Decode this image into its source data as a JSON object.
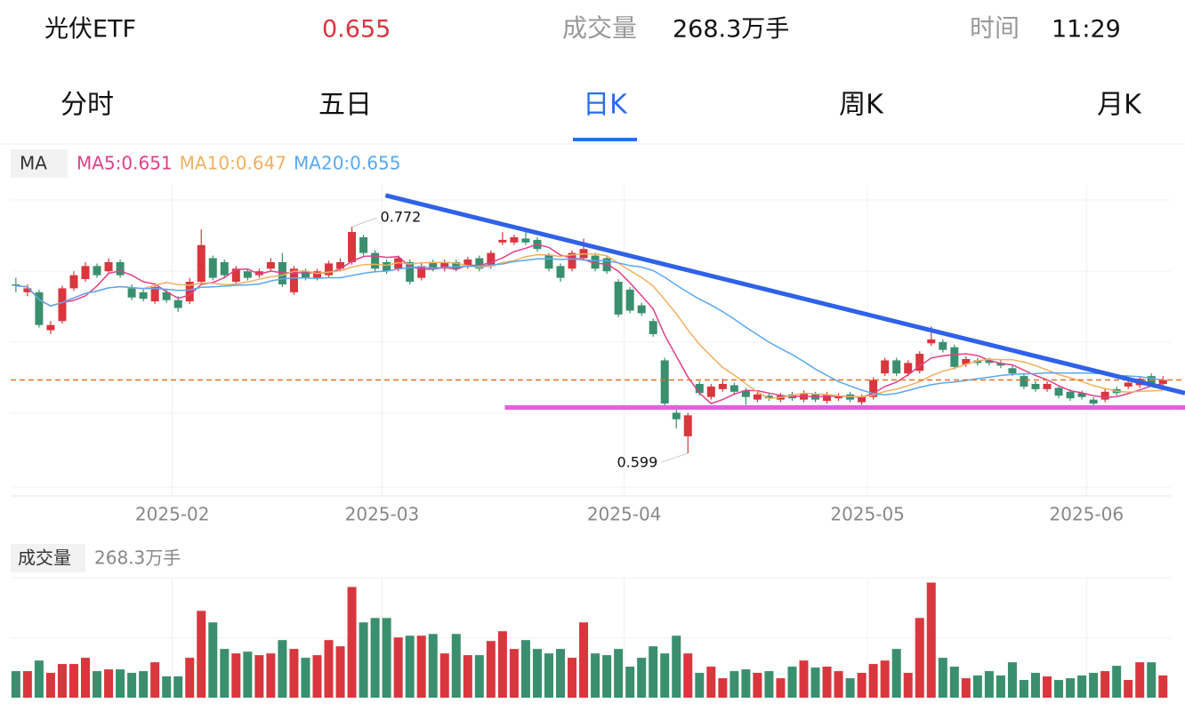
{
  "header": {
    "name": "光伏ETF",
    "price": "0.655",
    "volume_label": "成交量",
    "volume": "268.3万手",
    "time_label": "时间",
    "time": "11:29"
  },
  "tabs": [
    "分时",
    "五日",
    "日K",
    "周K",
    "月K"
  ],
  "active_tab": 2,
  "chart_data": {
    "type": "candlestick",
    "ma_label": "MA",
    "ma_legend": [
      {
        "label": "MA5:0.651",
        "color": "#e0408a",
        "period": 5
      },
      {
        "label": "MA10:0.647",
        "color": "#f0b060",
        "period": 10
      },
      {
        "label": "MA20:0.655",
        "color": "#5aa8f0",
        "period": 20
      }
    ],
    "up_color": "#d9363e",
    "down_color": "#3a8f6e",
    "xlim": [
      -0.45,
      100.9
    ],
    "ylim": [
      0.5685,
      0.804
    ],
    "xticks": [
      {
        "value": 13.5,
        "label": "2025-02"
      },
      {
        "value": 31.6,
        "label": "2025-03"
      },
      {
        "value": 52.5,
        "label": "2025-04"
      },
      {
        "value": 73.5,
        "label": "2025-05"
      },
      {
        "value": 92.4,
        "label": "2025-06"
      }
    ],
    "open": [
      0.728,
      0.722,
      0.722,
      0.693,
      0.7,
      0.725,
      0.732,
      0.742,
      0.738,
      0.745,
      0.725,
      0.722,
      0.715,
      0.722,
      0.716,
      0.715,
      0.73,
      0.748,
      0.745,
      0.73,
      0.738,
      0.735,
      0.74,
      0.745,
      0.722,
      0.738,
      0.733,
      0.735,
      0.74,
      0.745,
      0.764,
      0.752,
      0.745,
      0.74,
      0.745,
      0.733,
      0.745,
      0.74,
      0.745,
      0.742,
      0.748,
      0.742,
      0.76,
      0.76,
      0.763,
      0.762,
      0.75,
      0.742,
      0.74,
      0.748,
      0.75,
      0.748,
      0.73,
      0.724,
      0.712,
      0.7,
      0.67,
      0.63,
      0.612,
      0.652,
      0.642,
      0.648,
      0.651,
      0.647,
      0.64,
      0.643,
      0.64,
      0.644,
      0.64,
      0.644,
      0.639,
      0.641,
      0.644,
      0.638,
      0.642,
      0.66,
      0.67,
      0.66,
      0.662,
      0.683,
      0.684,
      0.68,
      0.667,
      0.67,
      0.67,
      0.668,
      0.664,
      0.658,
      0.652,
      0.648,
      0.649,
      0.646,
      0.645,
      0.64,
      0.64,
      0.648,
      0.65,
      0.651,
      0.658,
      0.652
    ],
    "high": [
      0.733,
      0.728,
      0.724,
      0.7,
      0.727,
      0.738,
      0.745,
      0.744,
      0.748,
      0.747,
      0.728,
      0.724,
      0.729,
      0.724,
      0.719,
      0.733,
      0.77,
      0.75,
      0.747,
      0.742,
      0.74,
      0.74,
      0.748,
      0.752,
      0.742,
      0.74,
      0.74,
      0.746,
      0.748,
      0.772,
      0.766,
      0.754,
      0.747,
      0.75,
      0.747,
      0.744,
      0.747,
      0.747,
      0.747,
      0.749,
      0.75,
      0.754,
      0.768,
      0.766,
      0.77,
      0.764,
      0.752,
      0.744,
      0.754,
      0.763,
      0.752,
      0.75,
      0.732,
      0.726,
      0.714,
      0.702,
      0.672,
      0.636,
      0.63,
      0.654,
      0.652,
      0.656,
      0.653,
      0.649,
      0.646,
      0.645,
      0.645,
      0.646,
      0.647,
      0.646,
      0.646,
      0.645,
      0.646,
      0.644,
      0.657,
      0.672,
      0.672,
      0.67,
      0.677,
      0.696,
      0.686,
      0.682,
      0.673,
      0.672,
      0.672,
      0.67,
      0.666,
      0.66,
      0.654,
      0.654,
      0.651,
      0.648,
      0.647,
      0.642,
      0.648,
      0.65,
      0.655,
      0.658,
      0.66,
      0.658
    ],
    "low": [
      0.722,
      0.719,
      0.695,
      0.69,
      0.698,
      0.723,
      0.73,
      0.733,
      0.736,
      0.733,
      0.716,
      0.715,
      0.713,
      0.714,
      0.707,
      0.713,
      0.728,
      0.731,
      0.733,
      0.728,
      0.731,
      0.733,
      0.738,
      0.726,
      0.72,
      0.731,
      0.731,
      0.733,
      0.738,
      0.743,
      0.75,
      0.738,
      0.736,
      0.738,
      0.728,
      0.731,
      0.738,
      0.738,
      0.738,
      0.74,
      0.738,
      0.74,
      0.758,
      0.758,
      0.758,
      0.753,
      0.738,
      0.73,
      0.738,
      0.746,
      0.738,
      0.736,
      0.703,
      0.706,
      0.704,
      0.688,
      0.635,
      0.618,
      0.599,
      0.643,
      0.64,
      0.646,
      0.644,
      0.636,
      0.638,
      0.639,
      0.638,
      0.639,
      0.638,
      0.638,
      0.637,
      0.639,
      0.638,
      0.636,
      0.64,
      0.658,
      0.658,
      0.658,
      0.66,
      0.681,
      0.676,
      0.663,
      0.665,
      0.666,
      0.666,
      0.664,
      0.658,
      0.648,
      0.646,
      0.646,
      0.641,
      0.639,
      0.64,
      0.635,
      0.638,
      0.643,
      0.648,
      0.649,
      0.65,
      0.65
    ],
    "close": [
      0.727,
      0.725,
      0.697,
      0.697,
      0.725,
      0.735,
      0.742,
      0.735,
      0.745,
      0.735,
      0.718,
      0.717,
      0.726,
      0.716,
      0.71,
      0.73,
      0.758,
      0.733,
      0.735,
      0.74,
      0.733,
      0.738,
      0.745,
      0.728,
      0.74,
      0.733,
      0.738,
      0.744,
      0.745,
      0.768,
      0.752,
      0.74,
      0.738,
      0.748,
      0.73,
      0.742,
      0.74,
      0.745,
      0.74,
      0.747,
      0.74,
      0.752,
      0.762,
      0.764,
      0.76,
      0.755,
      0.74,
      0.733,
      0.752,
      0.755,
      0.74,
      0.738,
      0.705,
      0.708,
      0.706,
      0.69,
      0.637,
      0.625,
      0.628,
      0.645,
      0.65,
      0.652,
      0.646,
      0.642,
      0.644,
      0.641,
      0.643,
      0.641,
      0.645,
      0.64,
      0.644,
      0.643,
      0.64,
      0.642,
      0.655,
      0.67,
      0.66,
      0.668,
      0.675,
      0.686,
      0.678,
      0.665,
      0.671,
      0.668,
      0.668,
      0.666,
      0.66,
      0.65,
      0.648,
      0.652,
      0.643,
      0.641,
      0.642,
      0.637,
      0.646,
      0.645,
      0.653,
      0.656,
      0.652,
      0.655
    ],
    "max_label": {
      "index": 29,
      "text": "0.772"
    },
    "min_label": {
      "index": 58,
      "text": "0.599"
    },
    "current_price": 0.655,
    "current_price_color": "#e0702a",
    "trendlines": [
      {
        "color": "#2f62e8",
        "x": [
          31.9,
          100.9
        ],
        "y": [
          0.796,
          0.645
        ]
      },
      {
        "color": "#e060e0",
        "x": [
          42.2,
          100.9
        ],
        "y": [
          0.634,
          0.634
        ]
      }
    ],
    "volume_label": "成交量",
    "volume_value": "268.3万手",
    "vol_ylim": [
      0,
      1450
    ],
    "volume": [
      321,
      321,
      449,
      300,
      407,
      407,
      482,
      321,
      342,
      342,
      300,
      321,
      428,
      257,
      257,
      482,
      1049,
      910,
      589,
      535,
      556,
      514,
      535,
      696,
      589,
      482,
      514,
      696,
      621,
      1338,
      910,
      963,
      963,
      728,
      749,
      749,
      770,
      535,
      770,
      514,
      514,
      685,
      803,
      589,
      696,
      589,
      535,
      589,
      482,
      910,
      535,
      514,
      589,
      375,
      482,
      621,
      535,
      749,
      535,
      300,
      375,
      235,
      321,
      342,
      300,
      321,
      235,
      375,
      449,
      364,
      375,
      321,
      235,
      300,
      407,
      449,
      589,
      300,
      963,
      1391,
      482,
      375,
      235,
      268,
      321,
      268,
      428,
      214,
      300,
      257,
      214,
      235,
      268,
      300,
      321,
      385,
      214,
      428,
      428,
      268.3
    ]
  }
}
